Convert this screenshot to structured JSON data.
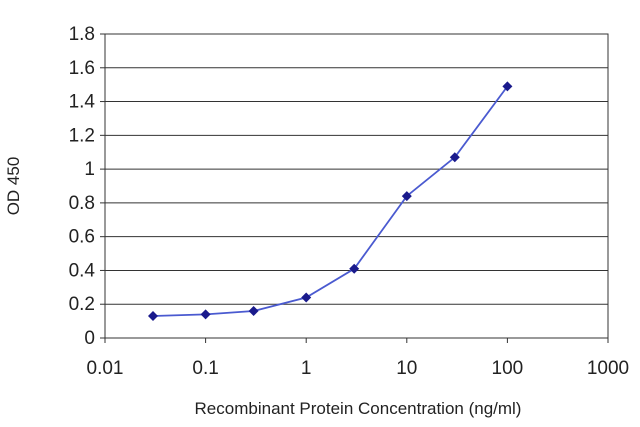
{
  "chart_data": {
    "type": "line",
    "xlabel": "Recombinant Protein Concentration (ng/ml)",
    "ylabel": "OD 450",
    "x_scale": "log",
    "xlim": [
      0.01,
      1000
    ],
    "ylim": [
      0,
      1.8
    ],
    "x_ticks": [
      "0.01",
      "0.1",
      "1",
      "10",
      "100",
      "1000"
    ],
    "y_ticks": [
      "0",
      "0.2",
      "0.4",
      "0.6",
      "0.8",
      "1",
      "1.2",
      "1.4",
      "1.6",
      "1.8"
    ],
    "grid": "horizontal",
    "legend": "none",
    "series": [
      {
        "x": [
          0.03,
          0.1,
          0.3,
          1,
          3,
          10,
          30,
          100
        ],
        "y": [
          0.13,
          0.14,
          0.16,
          0.24,
          0.41,
          0.84,
          1.07,
          1.49
        ],
        "color": "#1a1a8c",
        "line_color": "#4a5ad0"
      }
    ],
    "plot_background": "#ffffff",
    "grid_color": "#333333"
  }
}
